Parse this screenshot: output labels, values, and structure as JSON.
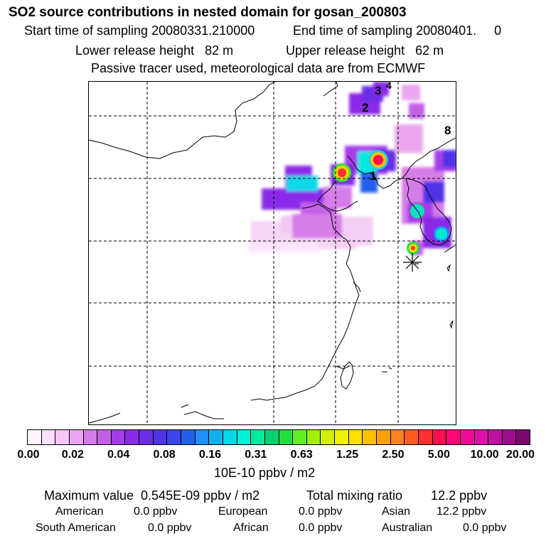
{
  "header": {
    "title": "SO2 source contributions in nested domain for gosan_200803",
    "start_time": "Start time of sampling 20080331.210000",
    "end_time": "End time of sampling 20080401.     0",
    "lower_release": "Lower release height   82 m",
    "upper_release": "Upper release height   62 m",
    "tracer_note": "Passive tracer used, meteorological data are from ECMWF"
  },
  "map": {
    "region_labels": [
      "1",
      "2",
      "3",
      "4",
      "8"
    ],
    "receptor_marker": "asterisk-icon"
  },
  "colorbar": {
    "tick_labels": [
      "0.00",
      "0.02",
      "0.04",
      "0.08",
      "0.16",
      "0.31",
      "0.63",
      "1.25",
      "2.50",
      "5.00",
      "10.00",
      "20.00"
    ],
    "colors": [
      "#fff4ff",
      "#ffe0ff",
      "#f7c4f7",
      "#eaa5ee",
      "#d57de8",
      "#c45ee7",
      "#a53dea",
      "#8a2be8",
      "#6a2ee6",
      "#4f33e8",
      "#3a45f0",
      "#2060ec",
      "#1e90ff",
      "#10b0f0",
      "#00d8e8",
      "#00f0d8",
      "#00eaa0",
      "#00d070",
      "#20e040",
      "#60f020",
      "#a0f000",
      "#d0f000",
      "#f0f000",
      "#ffe000",
      "#ffc000",
      "#ffa000",
      "#ff8020",
      "#ff5a20",
      "#ff3030",
      "#ff1050",
      "#ff0878",
      "#f00898",
      "#e010a8",
      "#c010a0",
      "#a00a90",
      "#7a0a70"
    ],
    "units": "10E-10 ppbv / m2"
  },
  "stats": {
    "max_value": "Maximum value  0.545E-09 ppbv / m2",
    "total_mixing": "Total mixing ratio        12.2 ppbv",
    "american_label": "American",
    "american_value": "0.0 ppbv",
    "european_label": "European",
    "european_value": "0.0 ppbv",
    "asian_label": "Asian",
    "asian_value": "12.2 ppbv",
    "south_american_label": "South American",
    "south_american_value": "0.0 ppbv",
    "african_label": "African",
    "african_value": "0.0 ppbv",
    "australian_label": "Australian",
    "australian_value": "0.0 ppbv"
  }
}
